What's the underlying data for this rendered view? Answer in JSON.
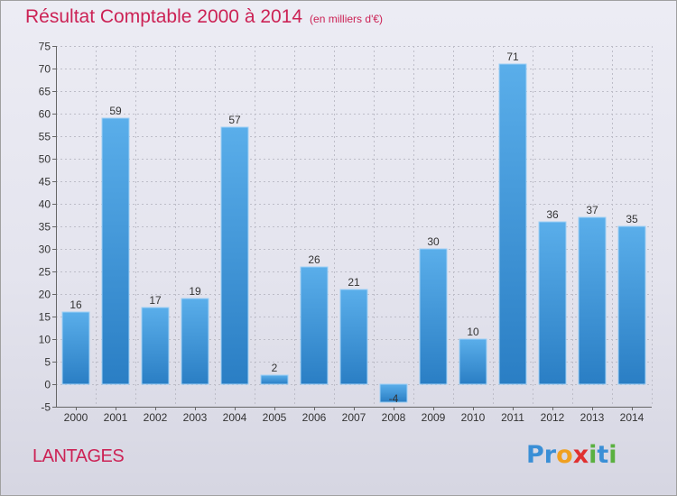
{
  "chart_data": {
    "type": "bar",
    "title": "Résultat Comptable 2000 à 2014",
    "subtitle": "(en milliers d'€)",
    "categories": [
      "2000",
      "2001",
      "2002",
      "2003",
      "2004",
      "2005",
      "2006",
      "2007",
      "2008",
      "2009",
      "2010",
      "2011",
      "2012",
      "2013",
      "2014"
    ],
    "values": [
      16,
      59,
      17,
      19,
      57,
      2,
      26,
      21,
      -4,
      30,
      10,
      71,
      36,
      37,
      35
    ],
    "value_labels": [
      "16",
      "59",
      "17",
      "19",
      "57",
      "2",
      "26",
      "21",
      "-4",
      "30",
      "10",
      "71",
      "36",
      "37",
      "35"
    ],
    "ylim": [
      -5,
      75
    ],
    "yticks": [
      -5,
      0,
      5,
      10,
      15,
      20,
      25,
      30,
      35,
      40,
      45,
      50,
      55,
      60,
      65,
      70,
      75
    ],
    "grid": true,
    "legend": "none",
    "bar_color_light": "#5aaeea",
    "bar_color_dark": "#2a7ec4"
  },
  "footer": {
    "commune": "LANTAGES",
    "brand_letters": [
      {
        "ch": "P",
        "color": "#3a8fd6"
      },
      {
        "ch": "r",
        "color": "#3a8fd6"
      },
      {
        "ch": "o",
        "color": "#f0a020"
      },
      {
        "ch": "x",
        "color": "#e03030"
      },
      {
        "ch": "i",
        "color": "#5ab040"
      },
      {
        "ch": "t",
        "color": "#3a8fd6"
      },
      {
        "ch": "i",
        "color": "#5ab040"
      }
    ]
  }
}
